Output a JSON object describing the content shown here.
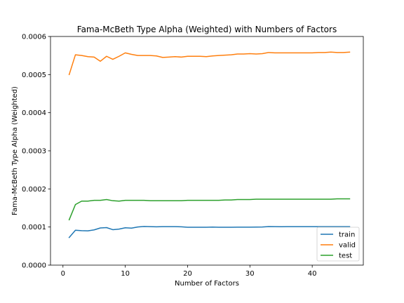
{
  "chart_data": {
    "type": "line",
    "title": "Fama-McBeth Type Alpha (Weighted) with Numbers of Factors",
    "xlabel": "Number of Factors",
    "ylabel": "Fama-McBeth Type Alpha (Weighted)",
    "xlim": [
      -2,
      48.2
    ],
    "ylim": [
      0,
      0.0006
    ],
    "xticks": [
      0,
      10,
      20,
      30,
      40
    ],
    "xtick_labels": [
      "0",
      "10",
      "20",
      "30",
      "40"
    ],
    "yticks": [
      0,
      0.0001,
      0.0002,
      0.0003,
      0.0004,
      0.0005,
      0.0006
    ],
    "ytick_labels": [
      "0.0000",
      "0.0001",
      "0.0002",
      "0.0003",
      "0.0004",
      "0.0005",
      "0.0006"
    ],
    "grid": false,
    "legend_position": "lower-right",
    "x": [
      1,
      2,
      3,
      4,
      5,
      6,
      7,
      8,
      9,
      10,
      11,
      12,
      13,
      14,
      15,
      16,
      17,
      18,
      19,
      20,
      21,
      22,
      23,
      24,
      25,
      26,
      27,
      28,
      29,
      30,
      31,
      32,
      33,
      34,
      35,
      36,
      37,
      38,
      39,
      40,
      41,
      42,
      43,
      44,
      45,
      46
    ],
    "series": [
      {
        "name": "train",
        "color": "#1f77b4",
        "values": [
          7.25e-05,
          9.15e-05,
          9.05e-05,
          9e-05,
          9.25e-05,
          9.75e-05,
          9.85e-05,
          9.3e-05,
          9.45e-05,
          9.8e-05,
          9.7e-05,
          0.0001,
          0.0001015,
          0.000101,
          0.0001005,
          0.000101,
          0.000101,
          0.000101,
          0.0001005,
          9.95e-05,
          9.95e-05,
          9.95e-05,
          9.95e-05,
          9.98e-05,
          9.95e-05,
          9.93e-05,
          9.95e-05,
          9.97e-05,
          9.97e-05,
          9.97e-05,
          9.98e-05,
          0.0001,
          0.0001012,
          0.000101,
          0.0001008,
          0.000101,
          0.000101,
          0.000101,
          0.000101,
          0.000101,
          0.000101,
          0.000101,
          0.000101,
          0.000101,
          0.000101,
          0.000101
        ]
      },
      {
        "name": "valid",
        "color": "#ff7f0e",
        "values": [
          0.0005,
          0.000552,
          0.00055,
          0.000547,
          0.000546,
          0.000535,
          0.000548,
          0.00054,
          0.000548,
          0.000557,
          0.000553,
          0.00055,
          0.00055,
          0.00055,
          0.000549,
          0.000545,
          0.000546,
          0.000547,
          0.000546,
          0.000548,
          0.000548,
          0.000548,
          0.000547,
          0.000549,
          0.00055,
          0.000551,
          0.000552,
          0.000554,
          0.000554,
          0.000555,
          0.000554,
          0.000555,
          0.000558,
          0.000557,
          0.000557,
          0.000557,
          0.000557,
          0.000557,
          0.000557,
          0.000557,
          0.000558,
          0.000558,
          0.000559,
          0.000558,
          0.000558,
          0.000559
        ]
      },
      {
        "name": "test",
        "color": "#2ca02c",
        "values": [
          0.000119,
          0.000159,
          0.000168,
          0.000168,
          0.00017,
          0.00017,
          0.000172,
          0.000169,
          0.000168,
          0.00017,
          0.00017,
          0.00017,
          0.00017,
          0.000169,
          0.000169,
          0.000169,
          0.000169,
          0.000169,
          0.000169,
          0.00017,
          0.00017,
          0.00017,
          0.00017,
          0.00017,
          0.00017,
          0.000171,
          0.000171,
          0.000172,
          0.000172,
          0.000172,
          0.000173,
          0.000173,
          0.000173,
          0.000173,
          0.000173,
          0.000173,
          0.000173,
          0.000173,
          0.000173,
          0.000173,
          0.000173,
          0.000173,
          0.000173,
          0.000174,
          0.000174,
          0.000174
        ]
      }
    ]
  }
}
